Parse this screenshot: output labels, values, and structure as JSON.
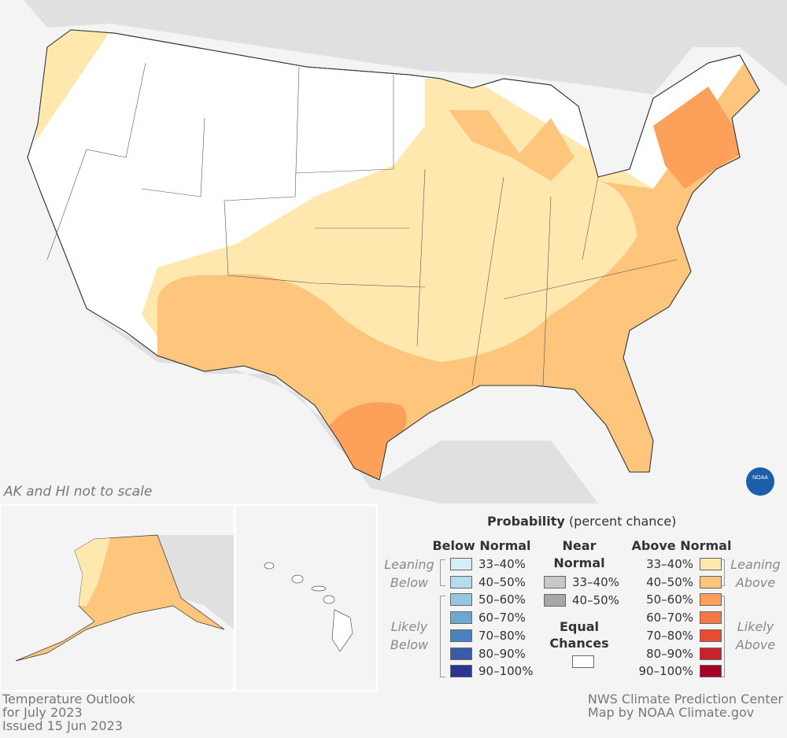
{
  "map": {
    "title_lines": [
      "Temperature Outlook",
      "for July 2023",
      "Issued 15 Jun 2023"
    ],
    "credit_lines": [
      "NWS Climate Prediction Center",
      "Map by NOAA Climate.gov"
    ],
    "inset_note": "AK and HI not to scale",
    "logo_text": "NOAA"
  },
  "colors": {
    "equal": "#ffffff",
    "lean_above_1": "#fee8ae",
    "lean_above_2": "#fdc67c",
    "likely_above_50": "#fda05a",
    "background": "#f4f4f4",
    "neighbor_land": "#e0e0e0"
  },
  "legend": {
    "title": "Probability",
    "subtitle": "(percent chance)",
    "below": {
      "header": "Below Normal",
      "leaning": "Leaning Below",
      "likely": "Likely Below",
      "items": [
        {
          "label": "33–40%",
          "color": "#d6eef5"
        },
        {
          "label": "40–50%",
          "color": "#b3dced"
        },
        {
          "label": "50–60%",
          "color": "#93c8e0"
        },
        {
          "label": "60–70%",
          "color": "#6ca8cf"
        },
        {
          "label": "70–80%",
          "color": "#4a82bd"
        },
        {
          "label": "80–90%",
          "color": "#3a5ba8"
        },
        {
          "label": "90–100%",
          "color": "#2b3590"
        }
      ]
    },
    "near": {
      "header": "Near Normal",
      "items": [
        {
          "label": "33–40%",
          "color": "#c8c8c8"
        },
        {
          "label": "40–50%",
          "color": "#a6a6a6"
        }
      ]
    },
    "equal": {
      "header": "Equal Chances",
      "color": "#ffffff"
    },
    "above": {
      "header": "Above Normal",
      "leaning": "Leaning Above",
      "likely": "Likely Above",
      "items": [
        {
          "label": "33–40%",
          "color": "#fee8ae"
        },
        {
          "label": "40–50%",
          "color": "#fdc67c"
        },
        {
          "label": "50–60%",
          "color": "#fda05a"
        },
        {
          "label": "60–70%",
          "color": "#f57849"
        },
        {
          "label": "70–80%",
          "color": "#e64b32"
        },
        {
          "label": "80–90%",
          "color": "#c8222a"
        },
        {
          "label": "90–100%",
          "color": "#a50026"
        }
      ]
    }
  }
}
